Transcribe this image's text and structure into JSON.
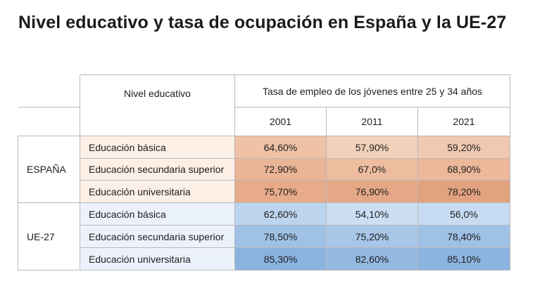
{
  "title": "Nivel educativo y tasa de ocupación en España y la UE-27",
  "headers": {
    "level": "Nivel educativo",
    "rate": "Tasa de empleo de los jóvenes entre 25 y 34 años",
    "years": [
      "2001",
      "2011",
      "2021"
    ]
  },
  "groups": [
    {
      "name": "ESPAÑA",
      "rows": [
        {
          "level": "Educación básica",
          "values": [
            "64,60%",
            "57,90%",
            "59,20%"
          ]
        },
        {
          "level": "Educación secundaria superior",
          "values": [
            "72,90%",
            "67,0%",
            "68,90%"
          ]
        },
        {
          "level": "Educación universitaria",
          "values": [
            "75,70%",
            "76,90%",
            "78,20%"
          ]
        }
      ]
    },
    {
      "name": "UE-27",
      "rows": [
        {
          "level": "Educación básica",
          "values": [
            "62,60%",
            "54,10%",
            "56,0%"
          ]
        },
        {
          "level": "Educación secundaria superior",
          "values": [
            "78,50%",
            "75,20%",
            "78,40%"
          ]
        },
        {
          "level": "Educación universitaria",
          "values": [
            "85,30%",
            "82,60%",
            "85,10%"
          ]
        }
      ]
    }
  ],
  "colors": {
    "espana_cells": [
      [
        "#efc2a5",
        "#f3d0b9",
        "#f1c9b0"
      ],
      [
        "#eab496",
        "#eebd9f",
        "#ecb89a"
      ],
      [
        "#e7ab8a",
        "#e5a886",
        "#e3a27f"
      ]
    ],
    "ue_cells": [
      [
        "#bcd4ee",
        "#cbdef4",
        "#c7dbf2"
      ],
      [
        "#9fc1e6",
        "#a7c6e8",
        "#a0c1e6"
      ],
      [
        "#8ab3e0",
        "#93b9e3",
        "#8bb4e1"
      ]
    ]
  }
}
